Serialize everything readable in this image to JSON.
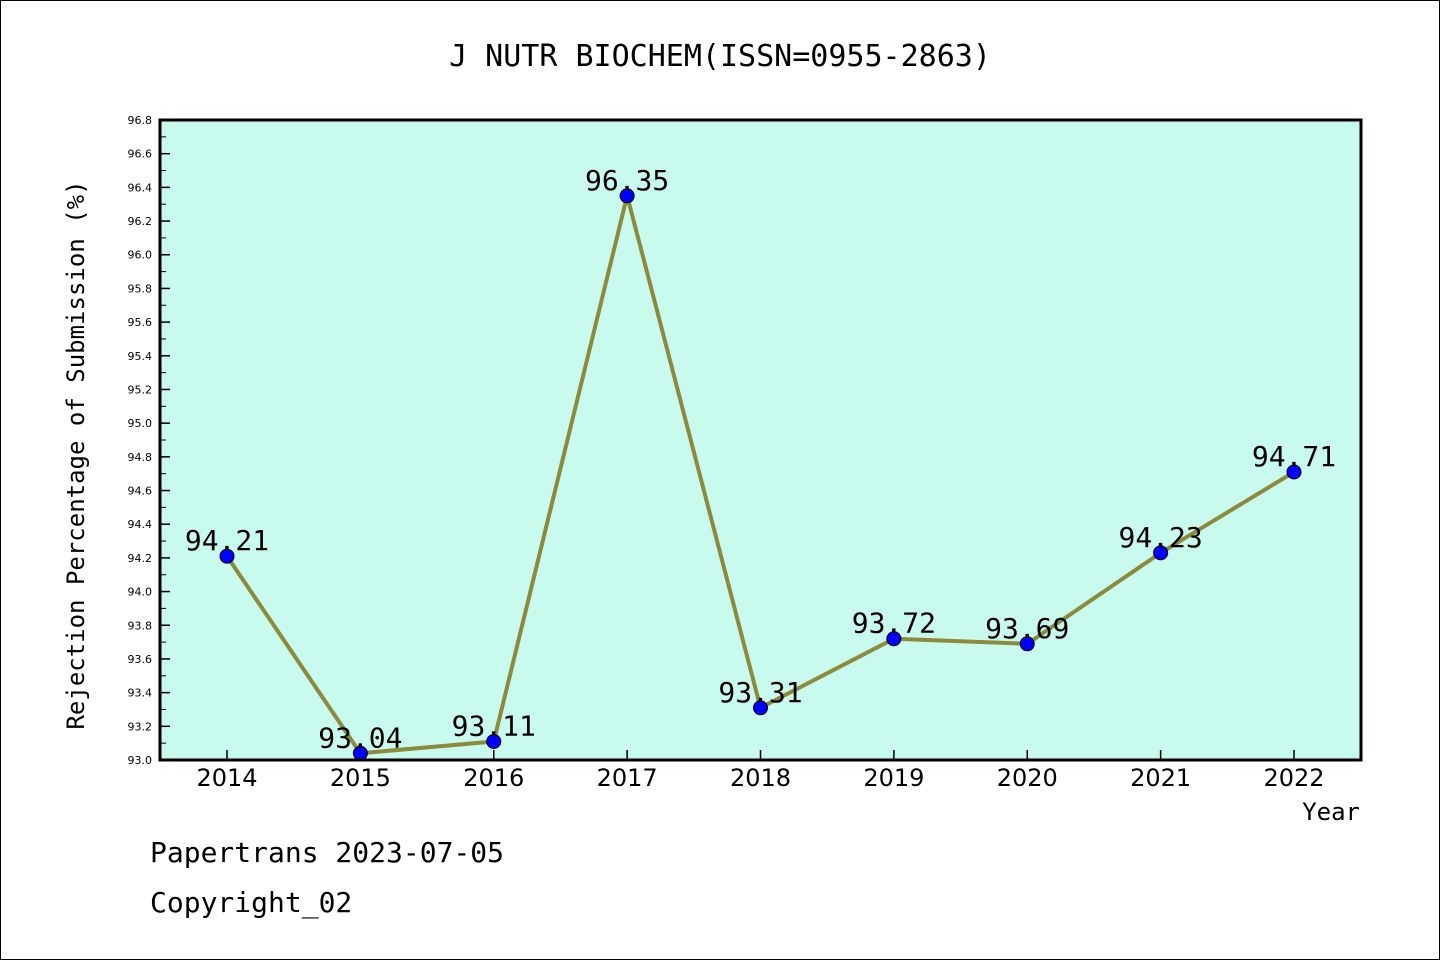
{
  "chart_data": {
    "type": "line",
    "title": "J NUTR BIOCHEM(ISSN=0955-2863)",
    "xlabel": "Year",
    "ylabel": "Rejection Percentage of Submission (%)",
    "categories": [
      "2014",
      "2015",
      "2016",
      "2017",
      "2018",
      "2019",
      "2020",
      "2021",
      "2022"
    ],
    "series": [
      {
        "values": [
          94.21,
          93.04,
          93.11,
          96.35,
          93.31,
          93.72,
          93.69,
          94.23,
          94.71
        ]
      }
    ],
    "data_labels": [
      "94.21",
      "93.04",
      "93.11",
      "96.35",
      "93.31",
      "93.72",
      "93.69",
      "94.23",
      "94.71"
    ],
    "ylim": [
      93.0,
      96.8
    ],
    "yticks": [
      "93.0",
      "93.2",
      "93.4",
      "93.6",
      "93.8",
      "94.0",
      "94.2",
      "94.4",
      "94.6",
      "94.8",
      "95.0",
      "95.2",
      "95.4",
      "95.6",
      "95.8",
      "96.0",
      "96.2",
      "96.4",
      "96.6",
      "96.8"
    ],
    "grid": false,
    "colors": {
      "plot_background": "#c8fbee",
      "line": "#8c8a3c",
      "marker": "#0000ff"
    }
  },
  "footer": {
    "line1": "Papertrans 2023-07-05",
    "line2": "Copyright_02"
  }
}
